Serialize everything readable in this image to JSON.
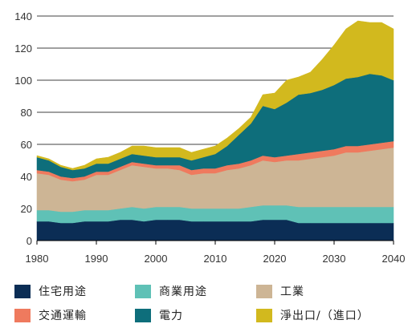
{
  "chart_data": {
    "type": "area",
    "stacked": true,
    "x": [
      1980,
      1982,
      1984,
      1986,
      1988,
      1990,
      1992,
      1994,
      1996,
      1998,
      2000,
      2002,
      2004,
      2006,
      2008,
      2010,
      2012,
      2014,
      2016,
      2018,
      2020,
      2022,
      2024,
      2026,
      2028,
      2030,
      2032,
      2034,
      2036,
      2038,
      2040
    ],
    "series": [
      {
        "name": "住宅用途",
        "color": "#0b2d55",
        "values": [
          12,
          12,
          11,
          11,
          12,
          12,
          12,
          13,
          13,
          12,
          13,
          13,
          13,
          12,
          12,
          12,
          12,
          12,
          12,
          13,
          13,
          13,
          11,
          11,
          11,
          11,
          11,
          11,
          11,
          11,
          11
        ]
      },
      {
        "name": "商業用途",
        "color": "#5fc1b6",
        "values": [
          7,
          7,
          7,
          7,
          7,
          7,
          7,
          7,
          8,
          8,
          8,
          8,
          8,
          8,
          8,
          8,
          8,
          8,
          9,
          9,
          9,
          9,
          10,
          10,
          10,
          10,
          10,
          10,
          10,
          10,
          10
        ]
      },
      {
        "name": "工業",
        "color": "#cdb595",
        "values": [
          23,
          22,
          20,
          19,
          19,
          22,
          22,
          24,
          26,
          26,
          24,
          24,
          23,
          21,
          22,
          22,
          24,
          25,
          26,
          28,
          27,
          28,
          29,
          30,
          31,
          32,
          34,
          34,
          35,
          36,
          37
        ]
      },
      {
        "name": "交通運輸",
        "color": "#ef7a5e",
        "values": [
          2,
          2,
          2,
          2,
          2,
          2,
          2,
          2,
          2,
          2,
          2,
          2,
          3,
          3,
          3,
          3,
          3,
          3,
          3,
          3,
          3,
          3,
          4,
          4,
          4,
          4,
          4,
          4,
          4,
          4,
          4
        ]
      },
      {
        "name": "電力",
        "color": "#0e6e7b",
        "values": [
          8,
          7,
          6,
          5,
          5,
          5,
          5,
          5,
          5,
          5,
          5,
          5,
          5,
          6,
          7,
          9,
          12,
          18,
          23,
          31,
          30,
          33,
          37,
          37,
          38,
          40,
          42,
          43,
          44,
          42,
          38
        ]
      },
      {
        "name": "淨出口/（進口）",
        "color": "#d2b91e",
        "values": [
          1,
          1,
          1,
          1,
          2,
          3,
          4,
          4,
          5,
          6,
          6,
          6,
          6,
          5,
          5,
          5,
          5,
          4,
          4,
          7,
          10,
          14,
          11,
          13,
          19,
          25,
          31,
          35,
          32,
          33,
          32
        ]
      }
    ],
    "xlim": [
      1980,
      2040
    ],
    "ylim": [
      0,
      140
    ],
    "xticks": [
      1980,
      1990,
      2000,
      2010,
      2020,
      2030,
      2040
    ],
    "yticks": [
      0,
      20,
      40,
      60,
      80,
      100,
      120,
      140
    ],
    "grid": "horizontal",
    "legend_position": "bottom"
  }
}
